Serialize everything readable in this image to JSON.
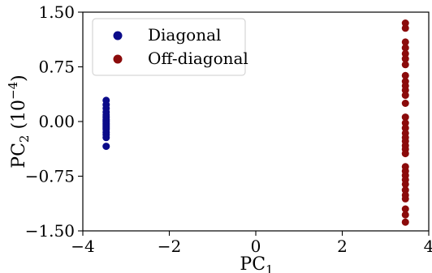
{
  "chart_data": {
    "type": "scatter",
    "title": "",
    "xlabel": "PC",
    "xlabel_sub": "1",
    "ylabel": "PC",
    "ylabel_sub": "2",
    "ylabel_unit_prefix": " (10",
    "ylabel_unit_exp": "−4",
    "ylabel_unit_suffix": ")",
    "xlim": [
      -4,
      4
    ],
    "ylim": [
      -1.5,
      1.5
    ],
    "x_ticks": [
      -4,
      -2,
      0,
      2,
      4
    ],
    "x_tick_labels": [
      "−4",
      "−2",
      "0",
      "2",
      "4"
    ],
    "y_ticks": [
      -1.5,
      -0.75,
      0.0,
      0.75,
      1.5
    ],
    "y_tick_labels": [
      "−1.50",
      "−0.75",
      "0.00",
      "0.75",
      "1.50"
    ],
    "grid": false,
    "legend_position": "top-left",
    "series": [
      {
        "name": "Diagonal",
        "color": "#0b0b8a",
        "x": [
          -3.46,
          -3.46,
          -3.46,
          -3.46,
          -3.46,
          -3.46,
          -3.46,
          -3.46,
          -3.46,
          -3.46,
          -3.46,
          -3.46,
          -3.46,
          -3.46,
          -3.46,
          -3.46,
          -3.46,
          -3.46
        ],
        "y": [
          0.29,
          0.23,
          0.18,
          0.13,
          0.09,
          0.06,
          0.03,
          0.01,
          -0.01,
          -0.03,
          -0.05,
          -0.07,
          -0.09,
          -0.11,
          -0.15,
          -0.18,
          -0.22,
          -0.34
        ]
      },
      {
        "name": "Off-diagonal",
        "color": "#8b0b0b",
        "x": [
          3.46,
          3.46,
          3.46,
          3.46,
          3.46,
          3.46,
          3.46,
          3.46,
          3.46,
          3.46,
          3.46,
          3.46,
          3.46,
          3.46,
          3.46,
          3.46,
          3.46,
          3.46,
          3.46,
          3.46,
          3.46,
          3.46,
          3.46,
          3.46,
          3.46,
          3.46,
          3.46,
          3.46,
          3.46,
          3.46,
          3.46,
          3.46,
          3.46
        ],
        "y": [
          1.35,
          1.28,
          1.09,
          1.01,
          0.93,
          0.86,
          0.78,
          0.63,
          0.55,
          0.49,
          0.43,
          0.36,
          0.25,
          0.06,
          -0.02,
          -0.09,
          -0.16,
          -0.22,
          -0.27,
          -0.33,
          -0.38,
          -0.44,
          -0.62,
          -0.68,
          -0.74,
          -0.8,
          -0.86,
          -0.94,
          -1.01,
          -1.06,
          -1.2,
          -1.28,
          -1.38
        ]
      }
    ]
  }
}
